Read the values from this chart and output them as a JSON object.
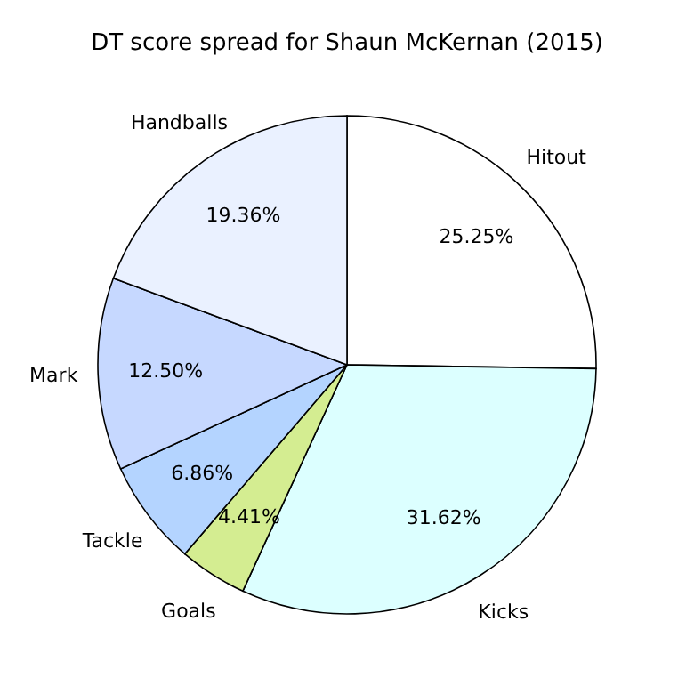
{
  "chart_data": {
    "type": "pie",
    "title": "DT score spread for Shaun McKernan (2015)",
    "categories": [
      "Hitout",
      "Kicks",
      "Goals",
      "Tackle",
      "Mark",
      "Handballs"
    ],
    "values": [
      25.25,
      31.62,
      4.41,
      6.86,
      12.5,
      19.36
    ],
    "colors": [
      "#ffffff",
      "#dcffff",
      "#d4ed91",
      "#b4d4ff",
      "#c6d8ff",
      "#eaf1ff"
    ],
    "value_labels": [
      "25.25%",
      "31.62%",
      "4.41%",
      "6.86%",
      "12.50%",
      "19.36%"
    ]
  }
}
